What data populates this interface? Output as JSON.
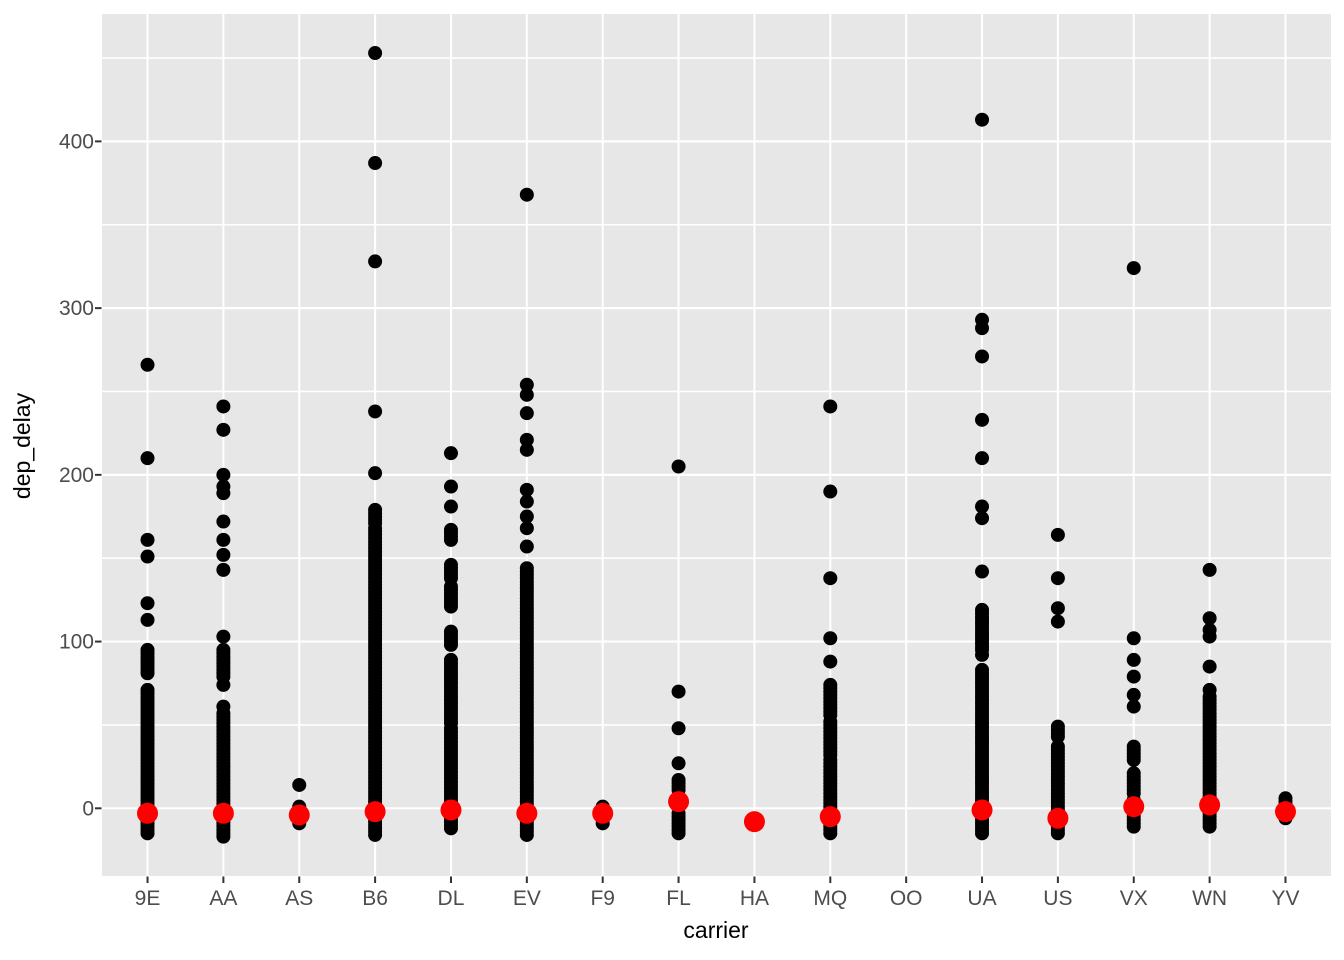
{
  "chart_data": {
    "type": "scatter",
    "title": "",
    "xlabel": "carrier",
    "ylabel": "dep_delay",
    "categories": [
      "9E",
      "AA",
      "AS",
      "B6",
      "DL",
      "EV",
      "F9",
      "FL",
      "HA",
      "MQ",
      "OO",
      "UA",
      "US",
      "VX",
      "WN",
      "YV"
    ],
    "yticks": [
      0,
      100,
      200,
      300,
      400
    ],
    "ytick_labels": [
      "0",
      "100",
      "200",
      "300",
      "400"
    ],
    "yticks_minor": [
      50,
      150,
      250,
      350,
      450
    ],
    "ylim": [
      -40.6,
      476.4
    ],
    "grid": true,
    "legend": "none",
    "colors": {
      "point": "#000000",
      "median_point": "#FF0000",
      "panel_bg": "#E7E7E7",
      "grid": "#FFFFFF",
      "tick_label": "#4D4D4D",
      "tick_mark": "#333333",
      "axis_title": "#000000"
    },
    "point_radius": 7,
    "median_radius": 10.5,
    "series": [
      {
        "carrier": "9E",
        "outliers": [
          266,
          210,
          161,
          151,
          123,
          113
        ],
        "strips": [
          [
            81,
            95
          ],
          [
            -15,
            72
          ]
        ],
        "median": -3
      },
      {
        "carrier": "AA",
        "outliers": [
          241,
          227,
          200,
          193,
          189,
          172,
          161,
          152,
          143,
          103,
          74,
          61
        ],
        "strips": [
          [
            79,
            95
          ],
          [
            -17,
            57
          ]
        ],
        "median": -3
      },
      {
        "carrier": "AS",
        "outliers": [
          14
        ],
        "strips": [
          [
            -9,
            2
          ]
        ],
        "median": -4
      },
      {
        "carrier": "B6",
        "outliers": [
          453,
          387,
          328,
          238,
          201
        ],
        "strips": [
          [
            171,
            180
          ],
          [
            -16,
            168
          ]
        ],
        "median": -2
      },
      {
        "carrier": "DL",
        "outliers": [
          213,
          193,
          181
        ],
        "strips": [
          [
            161,
            168
          ],
          [
            138,
            147
          ],
          [
            121,
            134
          ],
          [
            98,
            107
          ],
          [
            51,
            89
          ],
          [
            -12,
            49
          ]
        ],
        "median": -1
      },
      {
        "carrier": "EV",
        "outliers": [
          368,
          254,
          248,
          237,
          221,
          215,
          191,
          184,
          175,
          168,
          157
        ],
        "strips": [
          [
            -16,
            145
          ]
        ],
        "median": -3
      },
      {
        "carrier": "F9",
        "outliers": [],
        "strips": [
          [
            -9,
            2
          ]
        ],
        "median": -3
      },
      {
        "carrier": "FL",
        "outliers": [
          205,
          70,
          48,
          27
        ],
        "strips": [
          [
            11,
            18
          ],
          [
            -15,
            -2
          ]
        ],
        "median": 4
      },
      {
        "carrier": "HA",
        "outliers": [],
        "strips": [],
        "median": -8
      },
      {
        "carrier": "MQ",
        "outliers": [
          241,
          190,
          138,
          102,
          88
        ],
        "strips": [
          [
            56,
            75
          ],
          [
            32,
            53
          ],
          [
            -15,
            29
          ]
        ],
        "median": -5
      },
      {
        "carrier": "OO",
        "outliers": [],
        "strips": [],
        "median": null
      },
      {
        "carrier": "UA",
        "outliers": [
          413,
          293,
          288,
          271,
          233,
          210,
          181,
          174,
          142,
          92
        ],
        "strips": [
          [
            95,
            120
          ],
          [
            -15,
            84
          ]
        ],
        "median": -1
      },
      {
        "carrier": "US",
        "outliers": [
          164,
          138,
          120,
          112
        ],
        "strips": [
          [
            43,
            50
          ],
          [
            7,
            38
          ],
          [
            -15,
            5
          ]
        ],
        "median": -6
      },
      {
        "carrier": "VX",
        "outliers": [
          324,
          102,
          89,
          79,
          68,
          61
        ],
        "strips": [
          [
            29,
            37
          ],
          [
            9,
            21
          ],
          [
            -11,
            5
          ]
        ],
        "median": 1
      },
      {
        "carrier": "WN",
        "outliers": [
          143,
          114,
          107,
          103,
          85,
          71
        ],
        "strips": [
          [
            -11,
            67
          ]
        ],
        "median": 2
      },
      {
        "carrier": "YV",
        "outliers": [],
        "strips": [
          [
            -6,
            6
          ]
        ],
        "median": -2
      }
    ]
  }
}
